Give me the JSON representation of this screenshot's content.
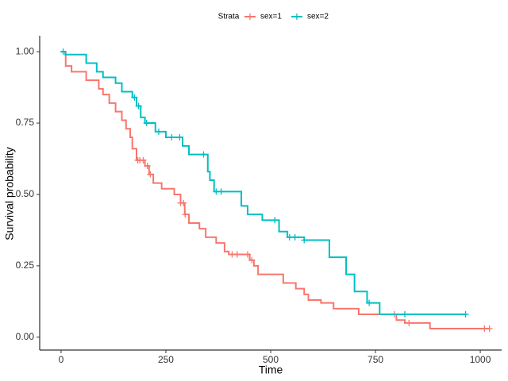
{
  "chart_data": {
    "type": "step",
    "xlabel": "Time",
    "ylabel": "Survival probability",
    "legend_title": "Strata",
    "legend_position": "top",
    "xlim": [
      -51,
      1051
    ],
    "ylim": [
      -0.045,
      1.056
    ],
    "xticks": [
      0,
      250,
      500,
      750,
      1000
    ],
    "yticks": [
      {
        "value": 0,
        "label": "0.00"
      },
      {
        "value": 0.25,
        "label": "0.25"
      },
      {
        "value": 0.5,
        "label": "0.50"
      },
      {
        "value": 0.75,
        "label": "0.75"
      },
      {
        "value": 1,
        "label": "1.00"
      }
    ],
    "series": [
      {
        "name": "sex=1",
        "color": "#f8766d",
        "x": [
          0,
          11,
          25,
          60,
          90,
          100,
          115,
          130,
          145,
          155,
          165,
          170,
          180,
          200,
          210,
          220,
          240,
          270,
          285,
          295,
          305,
          330,
          345,
          370,
          390,
          400,
          450,
          460,
          470,
          530,
          560,
          580,
          590,
          620,
          650,
          710,
          800,
          820,
          880,
          1022
        ],
        "values": [
          1.0,
          0.95,
          0.93,
          0.9,
          0.87,
          0.85,
          0.82,
          0.79,
          0.76,
          0.73,
          0.7,
          0.66,
          0.62,
          0.6,
          0.57,
          0.54,
          0.52,
          0.5,
          0.47,
          0.43,
          0.4,
          0.38,
          0.35,
          0.33,
          0.3,
          0.29,
          0.27,
          0.25,
          0.22,
          0.19,
          0.17,
          0.15,
          0.13,
          0.12,
          0.1,
          0.08,
          0.06,
          0.05,
          0.03,
          0.03
        ],
        "censored": [
          183,
          188,
          196,
          206,
          213,
          285,
          292,
          296,
          408,
          420,
          445,
          455,
          795,
          830,
          1010,
          1022
        ]
      },
      {
        "name": "sex=2",
        "color": "#00bfc4",
        "x": [
          0,
          10,
          60,
          85,
          100,
          130,
          145,
          170,
          180,
          190,
          200,
          225,
          250,
          290,
          305,
          350,
          355,
          365,
          390,
          430,
          445,
          480,
          520,
          540,
          580,
          640,
          680,
          700,
          730,
          760,
          965
        ],
        "values": [
          1.0,
          0.99,
          0.96,
          0.93,
          0.91,
          0.89,
          0.86,
          0.84,
          0.81,
          0.77,
          0.75,
          0.72,
          0.7,
          0.67,
          0.64,
          0.58,
          0.55,
          0.51,
          0.51,
          0.46,
          0.43,
          0.41,
          0.37,
          0.35,
          0.34,
          0.28,
          0.22,
          0.16,
          0.12,
          0.08,
          0.08
        ],
        "censored": [
          5,
          175,
          185,
          204,
          233,
          264,
          283,
          340,
          370,
          382,
          510,
          545,
          558,
          580,
          735,
          820,
          965
        ]
      }
    ]
  }
}
